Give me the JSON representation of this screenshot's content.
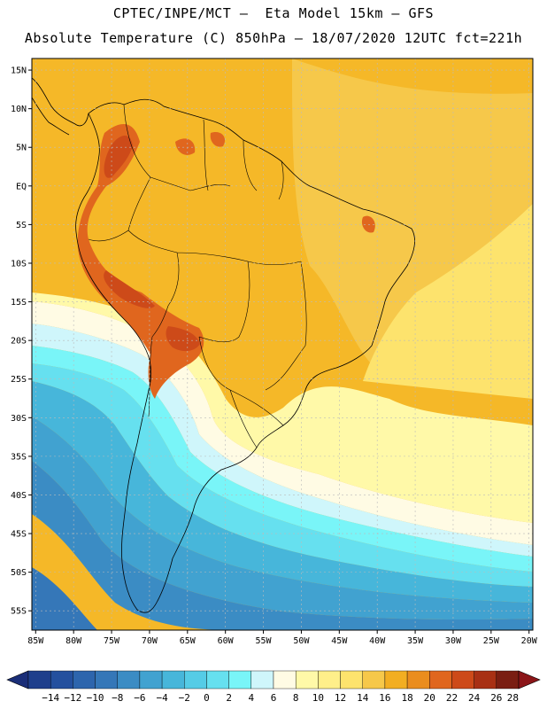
{
  "header": {
    "line1": "CPTEC/INPE/MCT –  Eta Model 15km – GFS",
    "line2": "Absolute Temperature (C) 850hPa – 18/07/2020 12UTC fct=221h"
  },
  "map": {
    "lat_labels": [
      "15N",
      "10N",
      "5N",
      "EQ",
      "5S",
      "10S",
      "15S",
      "20S",
      "25S",
      "30S",
      "35S",
      "40S",
      "45S",
      "50S",
      "55S"
    ],
    "lon_labels": [
      "85W",
      "80W",
      "75W",
      "70W",
      "65W",
      "60W",
      "55W",
      "50W",
      "45W",
      "40W",
      "35W",
      "30W",
      "25W",
      "20W"
    ],
    "lat_values": [
      15,
      10,
      5,
      0,
      -5,
      -10,
      -15,
      -20,
      -25,
      -30,
      -35,
      -40,
      -45,
      -50,
      -55
    ],
    "lon_values": [
      -85,
      -80,
      -75,
      -70,
      -65,
      -60,
      -55,
      -50,
      -45,
      -40,
      -35,
      -30,
      -25,
      -20
    ],
    "extent": {
      "lon_min": -85.5,
      "lon_max": -19.5,
      "lat_min": -57.5,
      "lat_max": 16.5
    }
  },
  "colorbar": {
    "labels": [
      "-14",
      "-12",
      "-10",
      "-8",
      "-6",
      "-4",
      "-2",
      "0",
      "2",
      "4",
      "6",
      "8",
      "10",
      "12",
      "14",
      "16",
      "18",
      "20",
      "22",
      "24",
      "26",
      "28"
    ],
    "colors": [
      "#1f3f8c",
      "#24509e",
      "#2d65ad",
      "#3577b8",
      "#3b8cc4",
      "#41a2d0",
      "#47b6da",
      "#55cce6",
      "#66e0ef",
      "#79f5f8",
      "#cff6fb",
      "#fffbe4",
      "#fff9a8",
      "#ffef8a",
      "#fde36d",
      "#f6c84a",
      "#f2ae22",
      "#ea8d1e",
      "#e0661e",
      "#cd4a19",
      "#a83014",
      "#7a1e12"
    ],
    "under_color": "#1a2e78",
    "over_color": "#8b1518"
  },
  "fill_colors": {
    "orange_dark": "#f2ae22",
    "orange": "#f5b828",
    "gold": "#f6c84a",
    "yellow": "#fde36d",
    "pale_yellow": "#fff9a8",
    "cream": "#fffbe4",
    "pale_cyan": "#cff6fb",
    "aqua": "#79f5f8",
    "cyan": "#66e0ef",
    "sky": "#47b6da",
    "blue1": "#41a2d0",
    "blue2": "#3b8cc4",
    "blue3": "#3577b8",
    "red_orange": "#e0661e",
    "red": "#cd4a19",
    "dark_red": "#a83014"
  }
}
